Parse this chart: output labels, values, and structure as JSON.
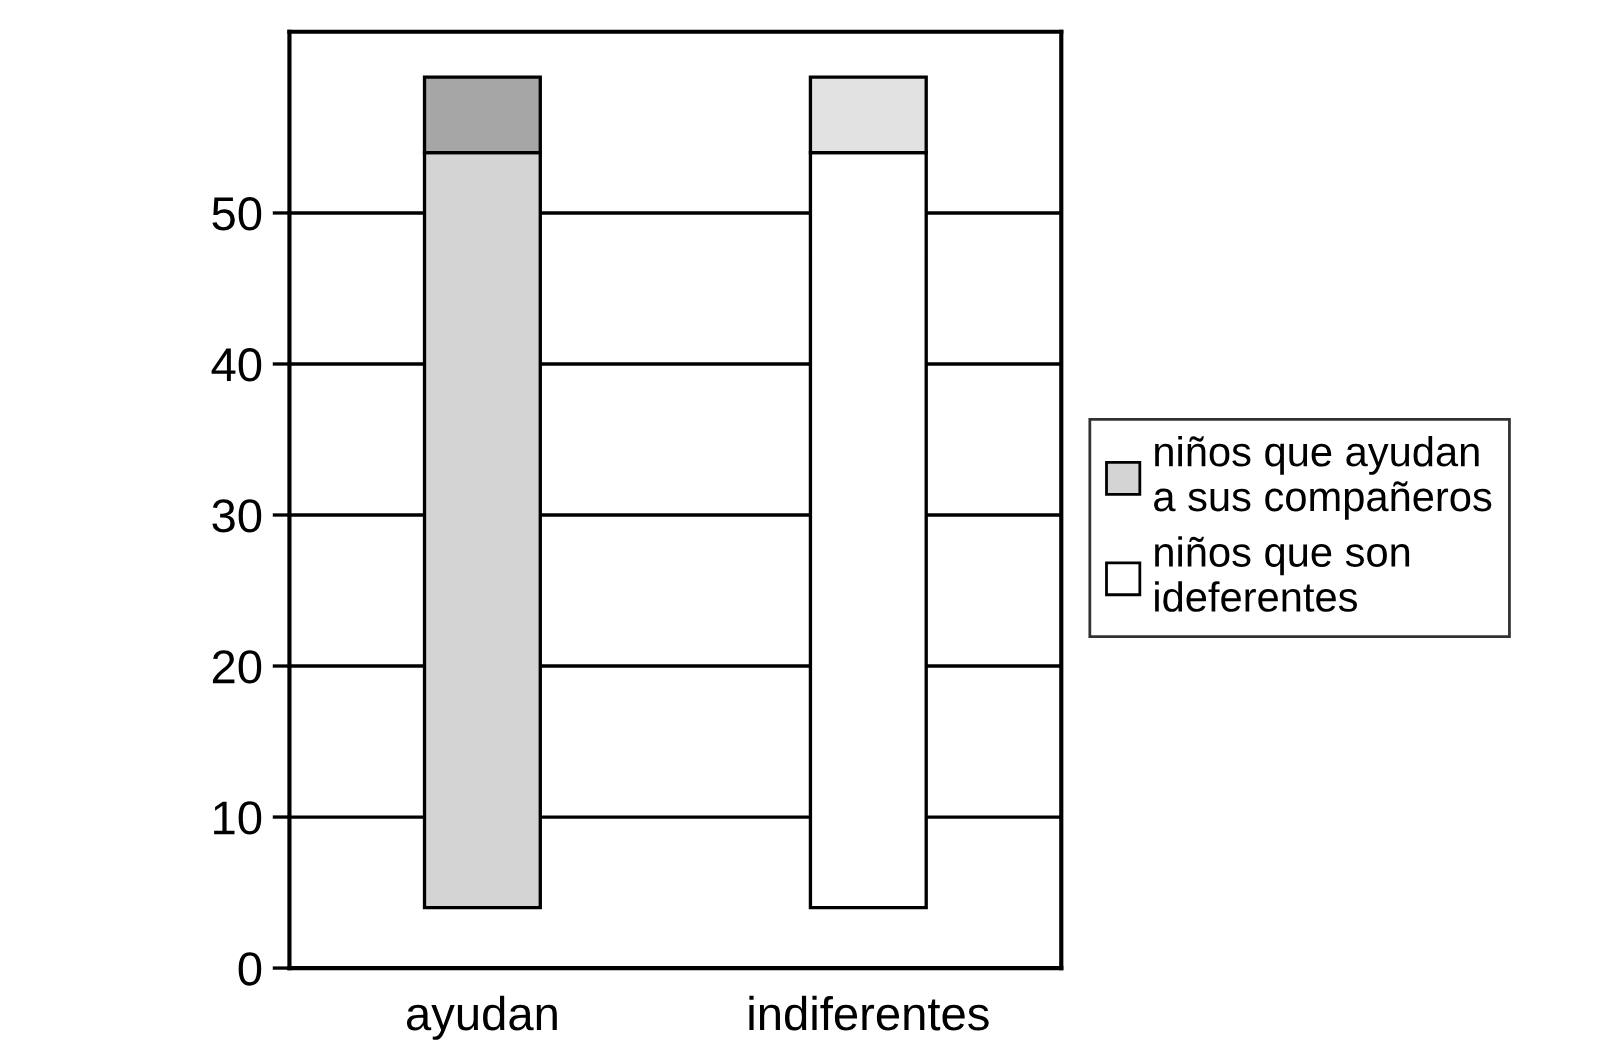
{
  "chart_data": {
    "type": "bar",
    "categories": [
      "ayudan",
      "indiferentes"
    ],
    "series": [
      {
        "name": "niños que ayudan a sus compañeros",
        "color": "#d4d4d4",
        "colors": [
          "#d4d4d4",
          "#ffffff"
        ],
        "base": [
          4,
          4
        ],
        "values": [
          50,
          50
        ]
      },
      {
        "name": "niños que son ideferentes",
        "color": "#ffffff",
        "colors": [
          "#a6a6a6",
          "#e2e2e2"
        ],
        "base": [
          54,
          54
        ],
        "values": [
          5,
          5
        ]
      }
    ],
    "ylim": [
      0,
      62
    ],
    "yticks": [
      0,
      10,
      20,
      30,
      40,
      50
    ],
    "grid": "y",
    "legend": "right"
  }
}
